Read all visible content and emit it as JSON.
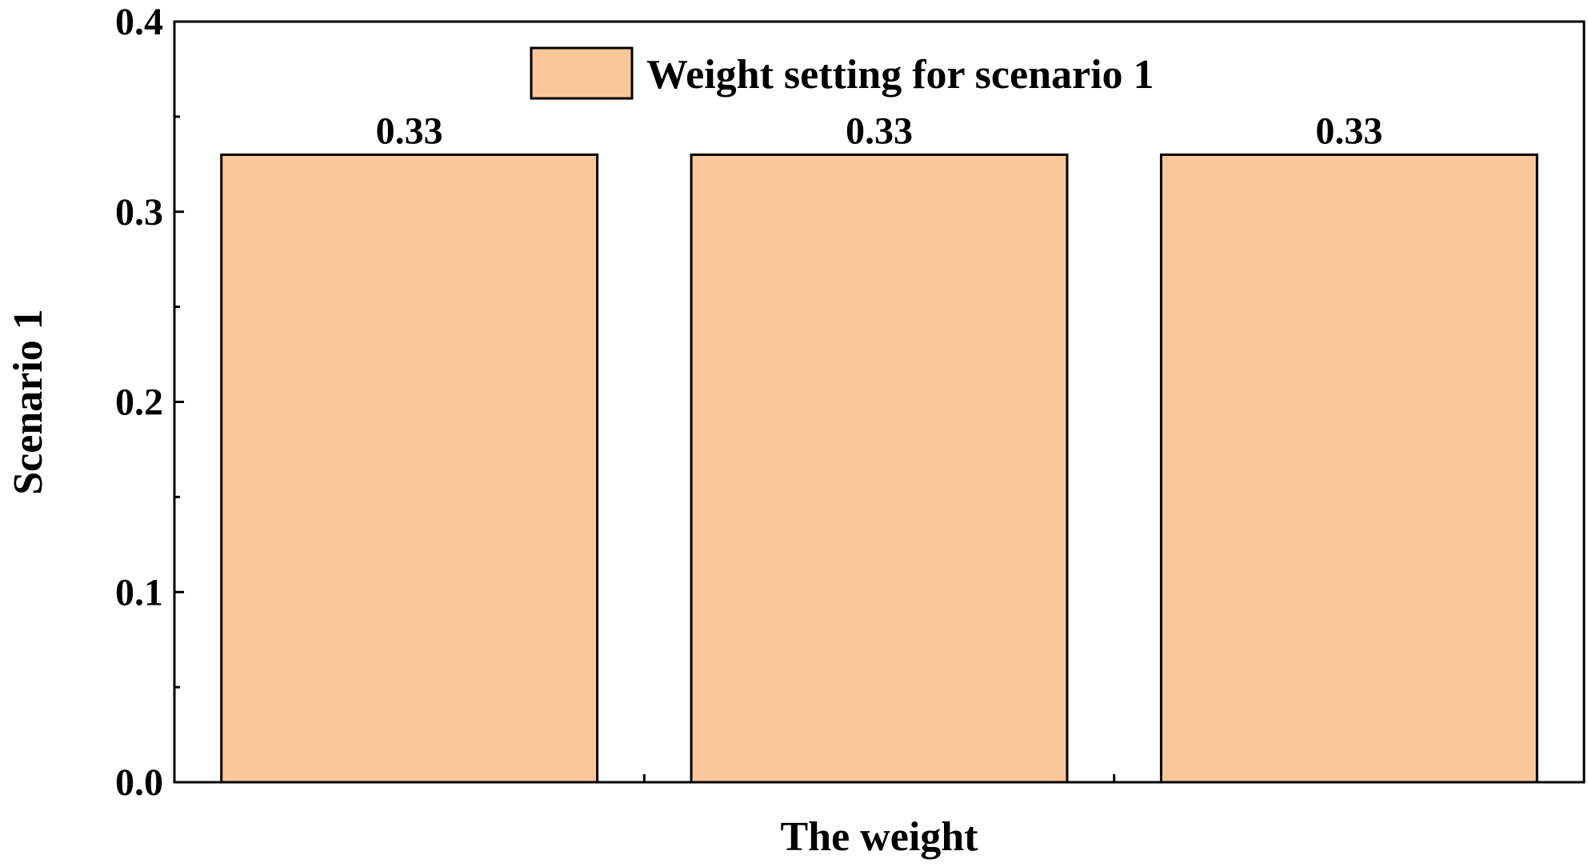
{
  "chart_data": {
    "type": "bar",
    "categories": [
      "",
      "",
      ""
    ],
    "series": [
      {
        "name": "Weight setting for scenario 1",
        "values": [
          0.33,
          0.33,
          0.33
        ],
        "color": "#fac898"
      }
    ],
    "data_labels": [
      "0.33",
      "0.33",
      "0.33"
    ],
    "xlabel": "The weight",
    "ylabel": "Scenario 1",
    "ylim": [
      0,
      0.4
    ],
    "yticks": [
      0.0,
      0.1,
      0.2,
      0.3,
      0.4
    ],
    "ytick_labels": [
      "0.0",
      "0.1",
      "0.2",
      "0.3",
      "0.4"
    ],
    "grid": false,
    "legend_position": "top-center"
  }
}
